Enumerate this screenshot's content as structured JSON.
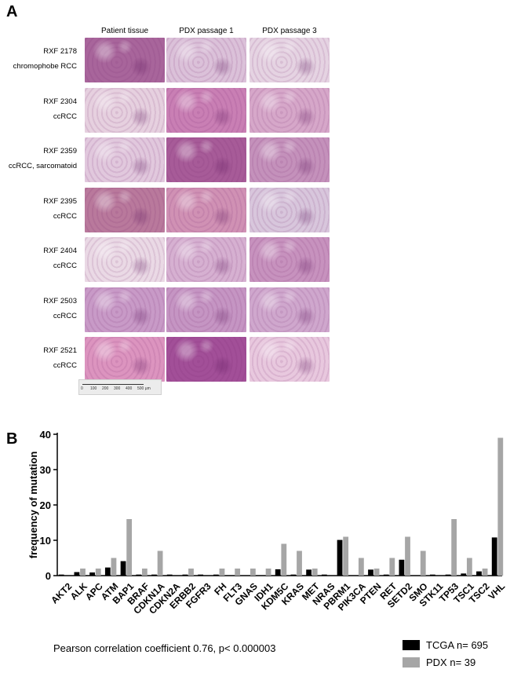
{
  "panel_a": {
    "letter": "A",
    "columns": [
      "Patient tissue",
      "PDX passage 1",
      "PDX passage 3"
    ],
    "rows": [
      {
        "id": "RXF 2178",
        "type": "chromophobe RCC",
        "tones": [
          "#a8659b",
          "#dbc1d9",
          "#e5d3e2"
        ]
      },
      {
        "id": "RXF 2304",
        "type": "ccRCC",
        "tones": [
          "#e6d0df",
          "#c97fb4",
          "#d6a7c9"
        ]
      },
      {
        "id": "RXF 2359",
        "type": "ccRCC, sarcomatoid",
        "tones": [
          "#e1c8dd",
          "#a75b98",
          "#c491bb"
        ]
      },
      {
        "id": "RXF 2395",
        "type": "ccRCC",
        "tones": [
          "#b9799c",
          "#d091b4",
          "#d8c6dc"
        ]
      },
      {
        "id": "RXF 2404",
        "type": "ccRCC",
        "tones": [
          "#ead9e5",
          "#d6b0d1",
          "#c792be"
        ]
      },
      {
        "id": "RXF 2503",
        "type": "ccRCC",
        "tones": [
          "#c89ac7",
          "#c595c3",
          "#cfa7cd"
        ]
      },
      {
        "id": "RXF 2521",
        "type": "ccRCC",
        "tones": [
          "#dc94bf",
          "#a24f98",
          "#e8c8de"
        ]
      }
    ],
    "scalebar_ticks": [
      "0",
      "100",
      "200",
      "300",
      "400",
      "500 µm"
    ]
  },
  "panel_b": {
    "letter": "B",
    "footnote": "Pearson correlation coefficient 0.76, p< 0.000003"
  },
  "chart_data": {
    "type": "bar",
    "ylabel": "frequency of mutation",
    "xlabel": "",
    "ylim": [
      0,
      40
    ],
    "yticks": [
      0,
      10,
      20,
      30,
      40
    ],
    "categories": [
      "AKT2",
      "ALK",
      "APC",
      "ATM",
      "BAP1",
      "BRAF",
      "CDKN1A",
      "CDKN2A",
      "ERBB2",
      "FGFR3",
      "FH",
      "FLT3",
      "GNAS",
      "IDH1",
      "KDM5C",
      "KRAS",
      "MET",
      "NRAS",
      "PBRM1",
      "PIK3CA",
      "PTEN",
      "RET",
      "SETD2",
      "SMO",
      "STK11",
      "TP53",
      "TSC1",
      "TSC2",
      "VHL"
    ],
    "series": [
      {
        "name": "TCGA n= 695",
        "color": "#000000",
        "values": [
          0.3,
          1.0,
          0.9,
          2.3,
          4.1,
          0.3,
          0.3,
          0.3,
          0.3,
          0.3,
          0.3,
          0.1,
          0.1,
          0.1,
          1.8,
          0.3,
          1.7,
          0.3,
          10.1,
          0.1,
          1.7,
          0.3,
          4.5,
          0.1,
          0.3,
          0.3,
          0.6,
          1.2,
          10.8
        ]
      },
      {
        "name": "PDX n= 39",
        "color": "#a6a6a6",
        "values": [
          0,
          2,
          2,
          5,
          16,
          2,
          7,
          0,
          2,
          0,
          2,
          2,
          2,
          2,
          9,
          7,
          2,
          0,
          11,
          5,
          2,
          5,
          11,
          7,
          0,
          16,
          5,
          2,
          39
        ]
      }
    ],
    "legend_position": "bottom-right"
  }
}
